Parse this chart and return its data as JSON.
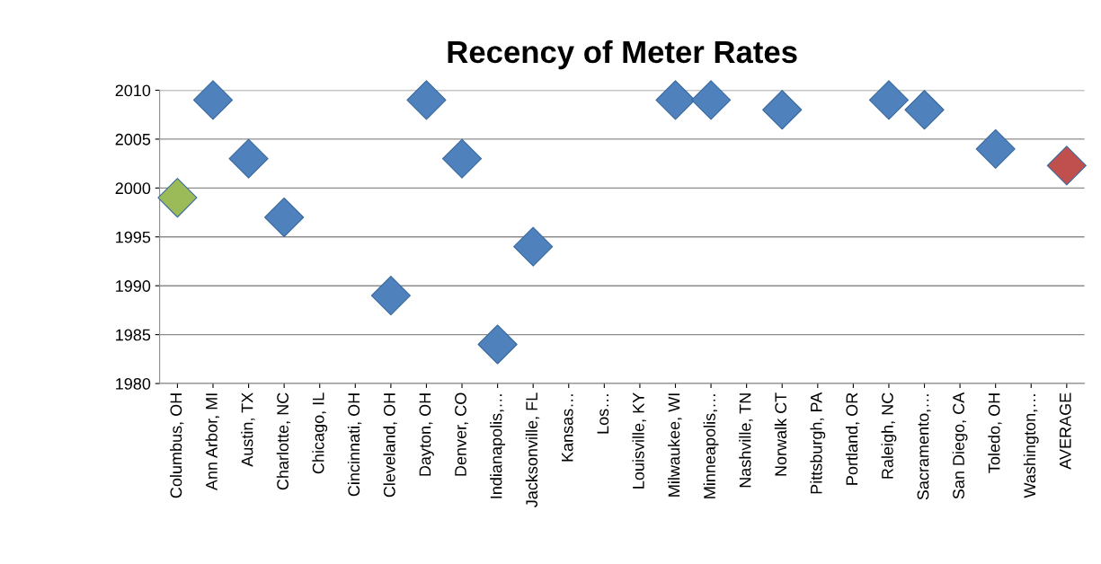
{
  "chart_data": {
    "type": "scatter",
    "title": "Recency of Meter Rates",
    "categories": [
      "Columbus, OH",
      "Ann Arbor, MI",
      "Austin, TX",
      "Charlotte, NC",
      "Chicago, IL",
      "Cincinnati, OH",
      "Cleveland, OH",
      "Dayton, OH",
      "Denver, CO",
      "Indianapolis,…",
      "Jacksonville, FL",
      "Kansas…",
      "Los…",
      "Louisville, KY",
      "Milwaukee, WI",
      "Minneapolis,…",
      "Nashville, TN",
      "Norwalk CT",
      "Pittsburgh, PA",
      "Portland, OR",
      "Raleigh, NC",
      "Sacramento,…",
      "San Diego, CA",
      "Toledo, OH",
      "Washington,…",
      "AVERAGE"
    ],
    "values": [
      1999,
      2009,
      2003,
      1997,
      null,
      null,
      1989,
      2009,
      2003,
      1984,
      1994,
      null,
      null,
      null,
      2009,
      2009,
      null,
      2008,
      null,
      null,
      2009,
      2008,
      null,
      2004,
      null,
      2002.3
    ],
    "colors": [
      "#9bbb59",
      "#4f81bd",
      "#4f81bd",
      "#4f81bd",
      "#4f81bd",
      "#4f81bd",
      "#4f81bd",
      "#4f81bd",
      "#4f81bd",
      "#4f81bd",
      "#4f81bd",
      "#4f81bd",
      "#4f81bd",
      "#4f81bd",
      "#4f81bd",
      "#4f81bd",
      "#4f81bd",
      "#4f81bd",
      "#4f81bd",
      "#4f81bd",
      "#4f81bd",
      "#4f81bd",
      "#4f81bd",
      "#4f81bd",
      "#4f81bd",
      "#c0504d"
    ],
    "ylim": [
      1980,
      2010
    ],
    "yticks": [
      1980,
      1985,
      1990,
      1995,
      2000,
      2005,
      2010
    ],
    "grid": "y",
    "marker": "diamond",
    "legend": false
  }
}
